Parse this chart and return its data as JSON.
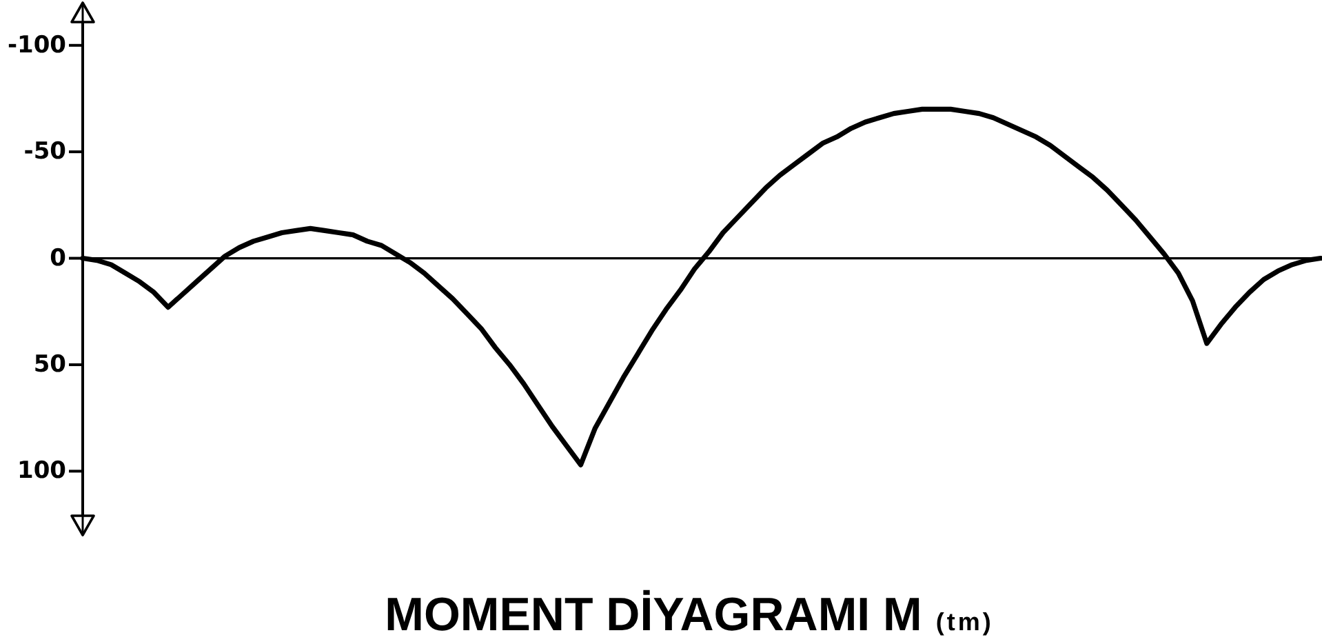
{
  "chart_data": {
    "type": "line",
    "title": "MOMENT DİYAGRAMI M (tm)",
    "categories": [
      null,
      null,
      null,
      null,
      null,
      null,
      null,
      null,
      null,
      null,
      null,
      null,
      null,
      null,
      null,
      null,
      null,
      null,
      null,
      null,
      null,
      null,
      null,
      null,
      null,
      null,
      null,
      null,
      null,
      null,
      null,
      null,
      null,
      null,
      null,
      null,
      null,
      null,
      null,
      null,
      null,
      null,
      null,
      null,
      null,
      null,
      null,
      null,
      null,
      null,
      null,
      null,
      null,
      null,
      null,
      null,
      null,
      null,
      null,
      null,
      null,
      null,
      null,
      null,
      null,
      null,
      null,
      null,
      null,
      null,
      null,
      null,
      null,
      null,
      null,
      null,
      null,
      null,
      null,
      null,
      null,
      null,
      null,
      null,
      null,
      null,
      null,
      null
    ],
    "series": [
      {
        "color": "#000000",
        "values": [
          0,
          1,
          3,
          7,
          11,
          16,
          23,
          17,
          11,
          5,
          -1,
          -5,
          -8,
          -10,
          -12,
          -13,
          -14,
          -13,
          -12,
          -11,
          -8,
          -6,
          -2,
          2,
          7,
          13,
          19,
          26,
          33,
          42,
          50,
          59,
          69,
          79,
          88,
          97,
          80,
          68,
          56,
          45,
          34,
          24,
          15,
          5,
          -3,
          -12,
          -19,
          -26,
          -33,
          -39,
          -44,
          -49,
          -54,
          -57,
          -61,
          -64,
          -66,
          -68,
          -69,
          -70,
          -70,
          -70,
          -69,
          -68,
          -66,
          -63,
          -60,
          -57,
          -53,
          -48,
          -43,
          -38,
          -32,
          -25,
          -18,
          -10,
          -2,
          7,
          20,
          40,
          31,
          23,
          16,
          10,
          6,
          3,
          1,
          0
        ]
      }
    ],
    "ylim": [
      130,
      -120
    ],
    "yticks": [
      -100,
      -50,
      0,
      50,
      100
    ],
    "tick_labels": "y"
  }
}
